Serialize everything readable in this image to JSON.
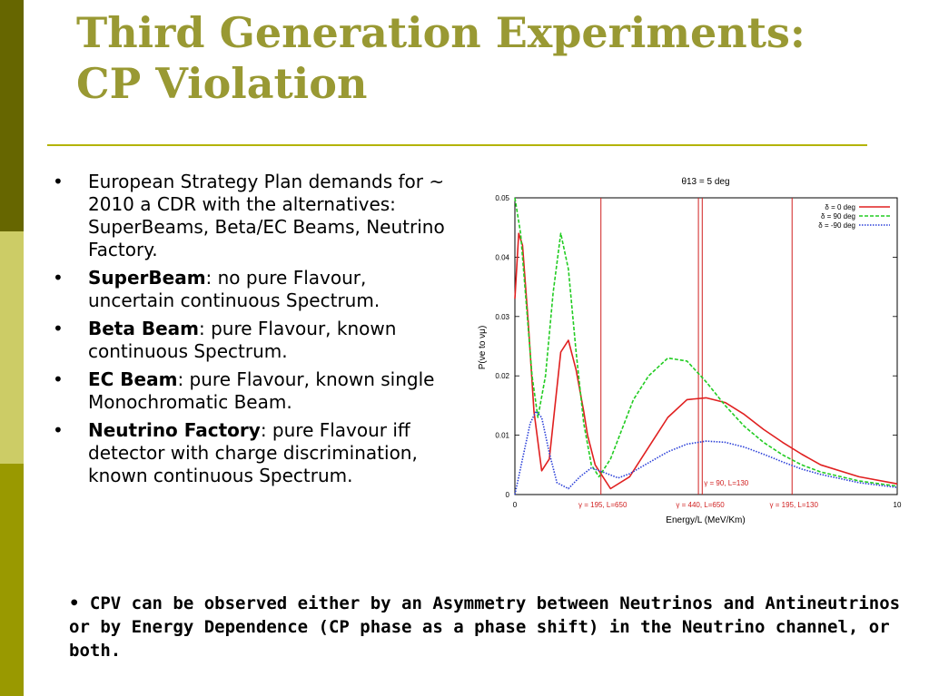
{
  "slide": {
    "title_line1": "Third Generation Experiments:",
    "title_line2": "CP Violation",
    "bullets": [
      {
        "bold": "",
        "text": "European Strategy Plan demands for ~ 2010 a CDR with the alternatives: SuperBeams, Beta/EC Beams, Neutrino Factory."
      },
      {
        "bold": "SuperBeam",
        "text": ": no pure Flavour, uncertain continuous  Spectrum."
      },
      {
        "bold": "Beta Beam",
        "text": ": pure Flavour, known continuous  Spectrum."
      },
      {
        "bold": "EC Beam",
        "text": ": pure Flavour, known single Monochromatic Beam."
      },
      {
        "bold": "Neutrino Factory",
        "text": ": pure Flavour iff detector with charge discrimination, known continuous Spectrum."
      }
    ],
    "bullet_symbol": "•",
    "note": "• CPV can be observed either by an Asymmetry between Neutrinos and Antineutrinos or by Energy Dependence (CP phase as a phase shift) in the Neutrino channel, or both.",
    "colors": {
      "title": "#999933",
      "rule": "#b3b300",
      "bar_dark": "#666600",
      "bar_light": "#cccc66",
      "bar_mid": "#999900"
    }
  },
  "chart_data": {
    "type": "line",
    "title": "θ13 = 5 deg",
    "xlabel": "Energy/L (MeV/Km)",
    "ylabel": "P(νe to νμ)",
    "xlim": [
      0,
      10
    ],
    "ylim": [
      0,
      0.05
    ],
    "x_ticks": [
      "0",
      "10"
    ],
    "y_ticks": [
      "0",
      "0.01",
      "0.02",
      "0.03",
      "0.04",
      "0.05"
    ],
    "legend_position": "top-right",
    "series": [
      {
        "name": "δ = 0 deg",
        "color": "#e02020",
        "dash": "solid",
        "x": [
          0,
          0.1,
          0.2,
          0.35,
          0.5,
          0.7,
          0.9,
          1.0,
          1.2,
          1.4,
          1.6,
          1.8,
          1.9,
          2.1,
          2.5,
          3.0,
          3.3,
          3.6,
          4.0,
          4.5,
          5.0,
          5.5,
          6.0,
          6.5,
          7.0,
          7.5,
          8.0,
          9.0,
          10.0
        ],
        "values": [
          0.033,
          0.044,
          0.042,
          0.029,
          0.014,
          0.004,
          0.006,
          0.012,
          0.024,
          0.026,
          0.021,
          0.014,
          0.01,
          0.005,
          0.001,
          0.003,
          0.006,
          0.009,
          0.013,
          0.016,
          0.0163,
          0.0155,
          0.0135,
          0.011,
          0.0088,
          0.0068,
          0.005,
          0.003,
          0.0018
        ]
      },
      {
        "name": "δ = 90 deg",
        "color": "#22cc22",
        "dash": "dashed",
        "x": [
          0,
          0.15,
          0.3,
          0.45,
          0.6,
          0.8,
          1.0,
          1.2,
          1.4,
          1.6,
          1.8,
          2.0,
          2.2,
          2.5,
          2.8,
          3.1,
          3.5,
          4.0,
          4.5,
          5.0,
          5.5,
          6.0,
          6.5,
          7.0,
          7.5,
          8.0,
          9.0,
          10.0
        ],
        "values": [
          0.05,
          0.044,
          0.032,
          0.02,
          0.013,
          0.02,
          0.034,
          0.044,
          0.038,
          0.024,
          0.012,
          0.005,
          0.003,
          0.006,
          0.011,
          0.016,
          0.02,
          0.023,
          0.0225,
          0.019,
          0.015,
          0.0115,
          0.0088,
          0.0067,
          0.005,
          0.0038,
          0.0023,
          0.0014
        ]
      },
      {
        "name": "δ = -90 deg",
        "color": "#2a3fd8",
        "dash": "dotted",
        "x": [
          0,
          0.2,
          0.4,
          0.55,
          0.7,
          0.9,
          1.1,
          1.4,
          1.7,
          2.0,
          2.3,
          2.7,
          3.0,
          3.4,
          4.0,
          4.5,
          5.0,
          5.5,
          6.0,
          6.5,
          7.0,
          7.5,
          8.0,
          9.0,
          10.0
        ],
        "values": [
          0.0,
          0.006,
          0.012,
          0.014,
          0.013,
          0.007,
          0.002,
          0.001,
          0.003,
          0.0045,
          0.0038,
          0.0028,
          0.0035,
          0.005,
          0.0072,
          0.0085,
          0.009,
          0.0088,
          0.008,
          0.0068,
          0.0055,
          0.0043,
          0.0034,
          0.002,
          0.0012
        ]
      }
    ],
    "vertical_lines": [
      {
        "x": 2.25,
        "label": "γ = 195, L=650"
      },
      {
        "x": 4.8,
        "label": "γ = 440, L=650"
      },
      {
        "x": 4.9,
        "label": "γ = 90, L=130"
      },
      {
        "x": 7.25,
        "label": "γ = 195, L=130"
      }
    ]
  }
}
